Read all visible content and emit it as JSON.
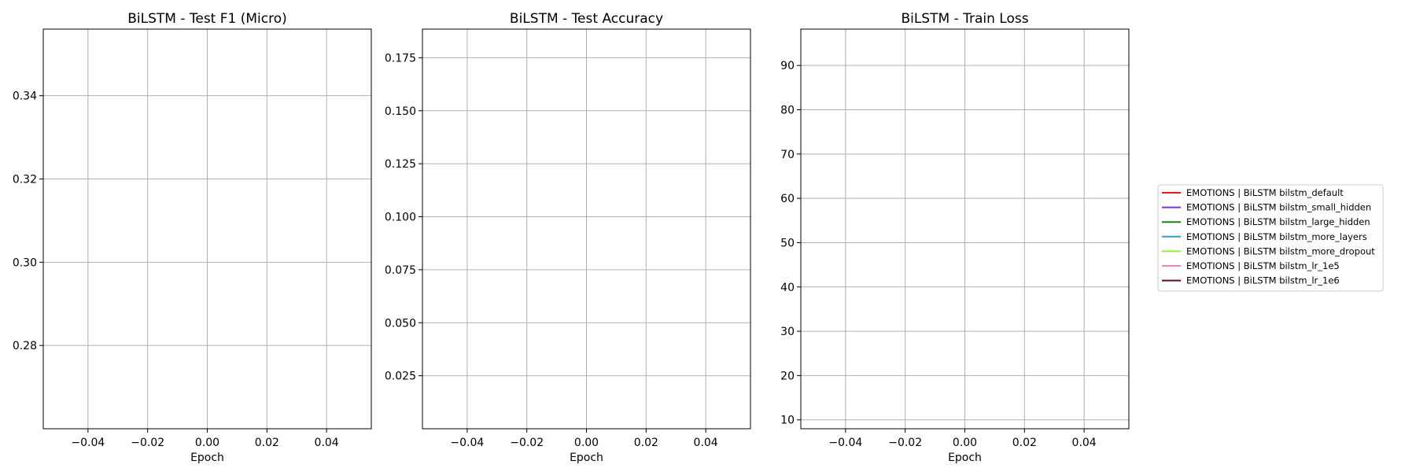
{
  "chart_data": [
    {
      "type": "line",
      "title": "BiLSTM - Test F1 (Micro)",
      "xlabel": "Epoch",
      "ylabel": "",
      "xlim": [
        -0.055,
        0.055
      ],
      "ylim": [
        0.26,
        0.356
      ],
      "xticks": [
        -0.04,
        -0.02,
        0.0,
        0.02,
        0.04
      ],
      "xtick_labels": [
        "−0.04",
        "−0.02",
        "0.00",
        "0.02",
        "0.04"
      ],
      "yticks": [
        0.28,
        0.3,
        0.32,
        0.34
      ],
      "ytick_labels": [
        "0.28",
        "0.30",
        "0.32",
        "0.34"
      ],
      "grid": true,
      "series": [
        {
          "x": [],
          "y": []
        },
        {
          "x": [],
          "y": []
        },
        {
          "x": [],
          "y": []
        },
        {
          "x": [],
          "y": []
        },
        {
          "x": [],
          "y": []
        },
        {
          "x": [],
          "y": []
        },
        {
          "x": [],
          "y": []
        }
      ]
    },
    {
      "type": "line",
      "title": "BiLSTM - Test Accuracy",
      "xlabel": "Epoch",
      "ylabel": "",
      "xlim": [
        -0.055,
        0.055
      ],
      "ylim": [
        0.0,
        0.1885
      ],
      "xticks": [
        -0.04,
        -0.02,
        0.0,
        0.02,
        0.04
      ],
      "xtick_labels": [
        "−0.04",
        "−0.02",
        "0.00",
        "0.02",
        "0.04"
      ],
      "yticks": [
        0.025,
        0.05,
        0.075,
        0.1,
        0.125,
        0.15,
        0.175
      ],
      "ytick_labels": [
        "0.025",
        "0.050",
        "0.075",
        "0.100",
        "0.125",
        "0.150",
        "0.175"
      ],
      "grid": true,
      "series": [
        {
          "x": [],
          "y": []
        },
        {
          "x": [],
          "y": []
        },
        {
          "x": [],
          "y": []
        },
        {
          "x": [],
          "y": []
        },
        {
          "x": [],
          "y": []
        },
        {
          "x": [],
          "y": []
        },
        {
          "x": [],
          "y": []
        }
      ]
    },
    {
      "type": "line",
      "title": "BiLSTM - Train Loss",
      "xlabel": "Epoch",
      "ylabel": "",
      "xlim": [
        -0.055,
        0.055
      ],
      "ylim": [
        8.0,
        98.2
      ],
      "xticks": [
        -0.04,
        -0.02,
        0.0,
        0.02,
        0.04
      ],
      "xtick_labels": [
        "−0.04",
        "−0.02",
        "0.00",
        "0.02",
        "0.04"
      ],
      "yticks": [
        10,
        20,
        30,
        40,
        50,
        60,
        70,
        80,
        90
      ],
      "ytick_labels": [
        "10",
        "20",
        "30",
        "40",
        "50",
        "60",
        "70",
        "80",
        "90"
      ],
      "grid": true,
      "series": [
        {
          "x": [],
          "y": []
        },
        {
          "x": [],
          "y": []
        },
        {
          "x": [],
          "y": []
        },
        {
          "x": [],
          "y": []
        },
        {
          "x": [],
          "y": []
        },
        {
          "x": [],
          "y": []
        },
        {
          "x": [],
          "y": []
        }
      ]
    }
  ],
  "legend": {
    "placement": "right",
    "entries": [
      {
        "label": "EMOTIONS | BiLSTM bilstm_default",
        "color": "#e41a1c"
      },
      {
        "label": "EMOTIONS | BiLSTM bilstm_small_hidden",
        "color": "#7b2fe0"
      },
      {
        "label": "EMOTIONS | BiLSTM bilstm_large_hidden",
        "color": "#128712"
      },
      {
        "label": "EMOTIONS | BiLSTM bilstm_more_layers",
        "color": "#2a9fd6"
      },
      {
        "label": "EMOTIONS | BiLSTM bilstm_more_dropout",
        "color": "#8cf52a"
      },
      {
        "label": "EMOTIONS | BiLSTM bilstm_lr_1e5",
        "color": "#f77fbe"
      },
      {
        "label": "EMOTIONS | BiLSTM bilstm_lr_1e6",
        "color": "#5c0a2e"
      }
    ]
  },
  "style": {
    "grid_color": "#b0b0b0",
    "axis_color": "#000000",
    "background": "#ffffff"
  }
}
